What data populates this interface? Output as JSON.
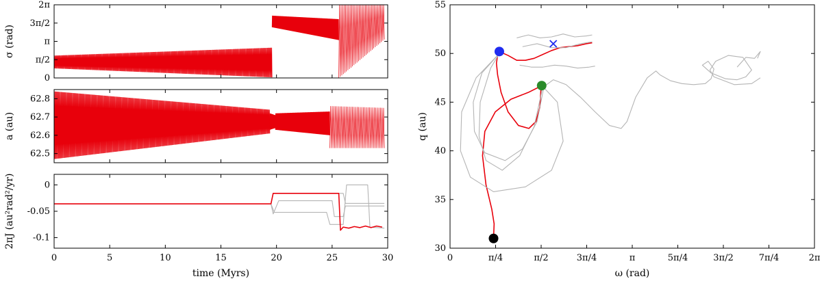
{
  "colors": {
    "red": "#e8000b",
    "grey": "#b4b4b4",
    "blue": "#1f2cf0",
    "green": "#2a8a2a",
    "black": "#000000"
  },
  "chart_data": [
    {
      "type": "line",
      "xlabel": "",
      "ylabel": "σ (rad)",
      "xlim": [
        0,
        30
      ],
      "ylim": [
        0,
        6.2832
      ],
      "yticks": [
        0,
        1.5708,
        3.1416,
        4.7124,
        6.2832
      ],
      "ytick_labels": [
        "0",
        "π/2",
        "π",
        "3π/2",
        "2π"
      ],
      "xticks": [
        0,
        5,
        10,
        15,
        20,
        25,
        30
      ],
      "bands": [
        {
          "t0": 0,
          "t1": 19.6,
          "lo0": 0.82,
          "hi0": 1.92,
          "lo1": 0.05,
          "hi1": 2.6,
          "n": 700
        },
        {
          "t0": 19.6,
          "t1": 25.6,
          "lo0": 4.35,
          "hi0": 5.35,
          "lo1": 3.25,
          "hi1": 5.05,
          "n": 300
        },
        {
          "t0": 25.6,
          "t1": 29.7,
          "lo0": 0.0,
          "hi0": 6.28,
          "lo1": 3.3,
          "hi1": 6.28,
          "n": 60
        }
      ]
    },
    {
      "type": "line",
      "xlabel": "",
      "ylabel": "a (au)",
      "xlim": [
        0,
        30
      ],
      "ylim": [
        62.45,
        62.85
      ],
      "yticks": [
        62.5,
        62.6,
        62.7,
        62.8
      ],
      "ytick_labels": [
        "62.5",
        "62.6",
        "62.7",
        "62.8"
      ],
      "xticks": [
        0,
        5,
        10,
        15,
        20,
        25,
        30
      ],
      "bands": [
        {
          "t0": 0,
          "t1": 19.4,
          "lo0": 62.47,
          "hi0": 62.84,
          "lo1": 62.61,
          "hi1": 62.74,
          "n": 700
        },
        {
          "t0": 19.4,
          "t1": 19.9,
          "lo0": 62.63,
          "hi0": 62.72,
          "lo1": 62.64,
          "hi1": 62.71,
          "n": 40
        },
        {
          "t0": 19.9,
          "t1": 24.8,
          "lo0": 62.63,
          "hi0": 62.72,
          "lo1": 62.6,
          "hi1": 62.73,
          "n": 250
        },
        {
          "t0": 24.8,
          "t1": 29.7,
          "lo0": 62.53,
          "hi0": 62.76,
          "lo1": 62.53,
          "hi1": 62.75,
          "n": 70
        }
      ]
    },
    {
      "type": "line",
      "xlabel": "time (Myrs)",
      "ylabel": "2πJ (au²rad²/yr)",
      "xlim": [
        0,
        30
      ],
      "ylim": [
        -0.12,
        0.02
      ],
      "yticks": [
        0,
        -0.05,
        -0.1
      ],
      "ytick_labels": [
        "0",
        "-0.05",
        "-0.1"
      ],
      "xticks": [
        0,
        5,
        10,
        15,
        20,
        25,
        30
      ],
      "xtick_labels": [
        "0",
        "5",
        "10",
        "15",
        "20",
        "25",
        "30"
      ],
      "series": [
        {
          "color": "grey",
          "x": [
            0,
            19.5,
            19.7,
            20.0,
            26.0,
            26.2,
            29.7
          ],
          "y": [
            -0.036,
            -0.036,
            -0.016,
            -0.016,
            -0.016,
            -0.035,
            -0.035
          ]
        },
        {
          "color": "grey",
          "x": [
            0,
            19.5,
            19.7,
            20.2,
            25.0,
            25.2,
            26.0,
            26.2,
            29.7
          ],
          "y": [
            -0.036,
            -0.036,
            -0.055,
            -0.03,
            -0.03,
            -0.06,
            -0.06,
            -0.04,
            -0.04
          ]
        },
        {
          "color": "grey",
          "x": [
            0,
            19.5,
            19.8,
            24.5,
            24.8,
            26.0,
            26.3,
            28.2,
            28.4,
            29.7
          ],
          "y": [
            -0.036,
            -0.036,
            -0.052,
            -0.052,
            -0.075,
            -0.075,
            0.0,
            0.0,
            -0.08,
            -0.082
          ]
        },
        {
          "color": "red",
          "x": [
            0,
            19.5,
            19.7,
            25.6,
            25.75,
            26.0,
            26.5,
            27.0,
            27.5,
            28.0,
            28.5,
            29.0,
            29.5
          ],
          "y": [
            -0.036,
            -0.036,
            -0.016,
            -0.016,
            -0.086,
            -0.08,
            -0.082,
            -0.079,
            -0.081,
            -0.078,
            -0.081,
            -0.078,
            -0.08
          ]
        }
      ]
    },
    {
      "type": "line",
      "xlabel": "ω (rad)",
      "ylabel": "q (au)",
      "xlim": [
        0,
        6.2832
      ],
      "ylim": [
        30,
        55
      ],
      "xticks": [
        0,
        0.7854,
        1.5708,
        2.3562,
        3.1416,
        3.927,
        4.7124,
        5.4978,
        6.2832
      ],
      "xtick_labels": [
        "0",
        "π/4",
        "π/2",
        "3π/4",
        "π",
        "5π/4",
        "3π/2",
        "7π/4",
        "2π"
      ],
      "yticks": [
        30,
        35,
        40,
        45,
        50,
        55
      ],
      "ytick_labels": [
        "30",
        "35",
        "40",
        "45",
        "50",
        "55"
      ],
      "series": [
        {
          "color": "red",
          "x": [
            0.75,
            0.76,
            0.72,
            0.62,
            0.56,
            0.6,
            0.78,
            1.05,
            1.35,
            1.55,
            1.62,
            1.57
          ],
          "y": [
            31.0,
            32.5,
            34.0,
            36.5,
            39.5,
            42.0,
            44.0,
            45.3,
            46.0,
            46.6,
            46.9,
            46.7
          ]
        },
        {
          "color": "red",
          "x": [
            1.57,
            1.55,
            1.48,
            1.36,
            1.18,
            1.0,
            0.88,
            0.82,
            0.8,
            0.82,
            0.85
          ],
          "y": [
            46.7,
            44.5,
            43.0,
            42.3,
            42.6,
            44.0,
            46.0,
            47.8,
            49.0,
            49.8,
            50.2
          ]
        },
        {
          "color": "red",
          "x": [
            0.85,
            1.0,
            1.15,
            1.3,
            1.45,
            1.6,
            1.75,
            1.9,
            2.05,
            2.2,
            2.35,
            2.45
          ],
          "y": [
            50.2,
            49.8,
            49.3,
            49.3,
            49.5,
            49.9,
            50.3,
            50.6,
            50.7,
            50.8,
            51.0,
            51.1
          ]
        },
        {
          "color": "grey",
          "x": [
            0.85,
            0.55,
            0.4,
            0.42,
            0.6,
            0.95,
            1.25,
            1.5,
            1.62
          ],
          "y": [
            50.0,
            48.0,
            45.0,
            42.0,
            39.8,
            39.0,
            40.2,
            43.0,
            46.6
          ]
        },
        {
          "color": "grey",
          "x": [
            0.85,
            0.7,
            0.52,
            0.5,
            0.62,
            0.9,
            1.2,
            1.45,
            1.6
          ],
          "y": [
            50.0,
            48.5,
            45.0,
            41.5,
            39.0,
            38.0,
            39.5,
            42.5,
            46.6
          ]
        },
        {
          "color": "grey",
          "x": [
            0.85,
            0.45,
            0.2,
            0.18,
            0.35,
            0.75,
            1.3,
            1.75,
            1.95,
            1.85,
            1.6
          ],
          "y": [
            50.0,
            47.5,
            44.0,
            40.0,
            37.3,
            35.8,
            36.3,
            38.0,
            41.0,
            45.0,
            46.6
          ]
        },
        {
          "color": "grey",
          "x": [
            1.62,
            1.78,
            2.0,
            2.25,
            2.5,
            2.75,
            2.95,
            3.05,
            3.2,
            3.4,
            3.55,
            3.62
          ],
          "y": [
            46.6,
            47.3,
            46.8,
            45.5,
            44.0,
            42.6,
            42.3,
            43.0,
            45.5,
            47.5,
            48.2,
            47.8
          ]
        },
        {
          "color": "grey",
          "x": [
            3.62,
            3.8,
            4.0,
            4.2,
            4.4,
            4.5,
            4.55,
            4.45,
            4.35,
            4.5,
            4.75,
            4.95,
            5.1,
            5.2,
            5.05,
            4.8,
            4.58,
            4.48,
            4.55,
            4.9,
            5.2,
            5.35
          ],
          "y": [
            47.8,
            47.2,
            46.9,
            46.8,
            46.9,
            47.4,
            48.4,
            49.2,
            48.8,
            48.0,
            47.4,
            47.3,
            47.6,
            48.3,
            49.6,
            49.8,
            49.2,
            48.3,
            47.6,
            46.8,
            46.9,
            47.5
          ]
        },
        {
          "color": "grey",
          "x": [
            1.2,
            1.4,
            1.6,
            1.8,
            2.0,
            2.2,
            2.4,
            2.5
          ],
          "y": [
            48.8,
            48.6,
            48.6,
            48.8,
            48.7,
            48.5,
            48.6,
            48.7
          ]
        },
        {
          "color": "grey",
          "x": [
            1.25,
            1.5,
            1.75,
            2.0,
            2.25,
            2.45
          ],
          "y": [
            50.7,
            51.0,
            50.6,
            50.6,
            51.0,
            51.2
          ]
        },
        {
          "color": "grey",
          "x": [
            1.15,
            1.35,
            1.55,
            1.75,
            1.95,
            2.15,
            2.35,
            2.45
          ],
          "y": [
            51.6,
            51.9,
            51.6,
            51.7,
            52.0,
            51.7,
            51.8,
            51.9
          ]
        },
        {
          "color": "grey",
          "x": [
            4.95,
            5.1,
            5.25,
            5.35,
            5.3
          ],
          "y": [
            48.6,
            49.6,
            49.5,
            50.2,
            49.5
          ]
        }
      ],
      "markers": [
        {
          "shape": "circle",
          "color": "black",
          "x": 0.75,
          "y": 31.0
        },
        {
          "shape": "circle",
          "color": "blue",
          "x": 0.85,
          "y": 50.2
        },
        {
          "shape": "circle",
          "color": "green",
          "x": 1.58,
          "y": 46.7
        },
        {
          "shape": "cross",
          "color": "blue",
          "x": 1.78,
          "y": 51.0
        }
      ]
    }
  ]
}
